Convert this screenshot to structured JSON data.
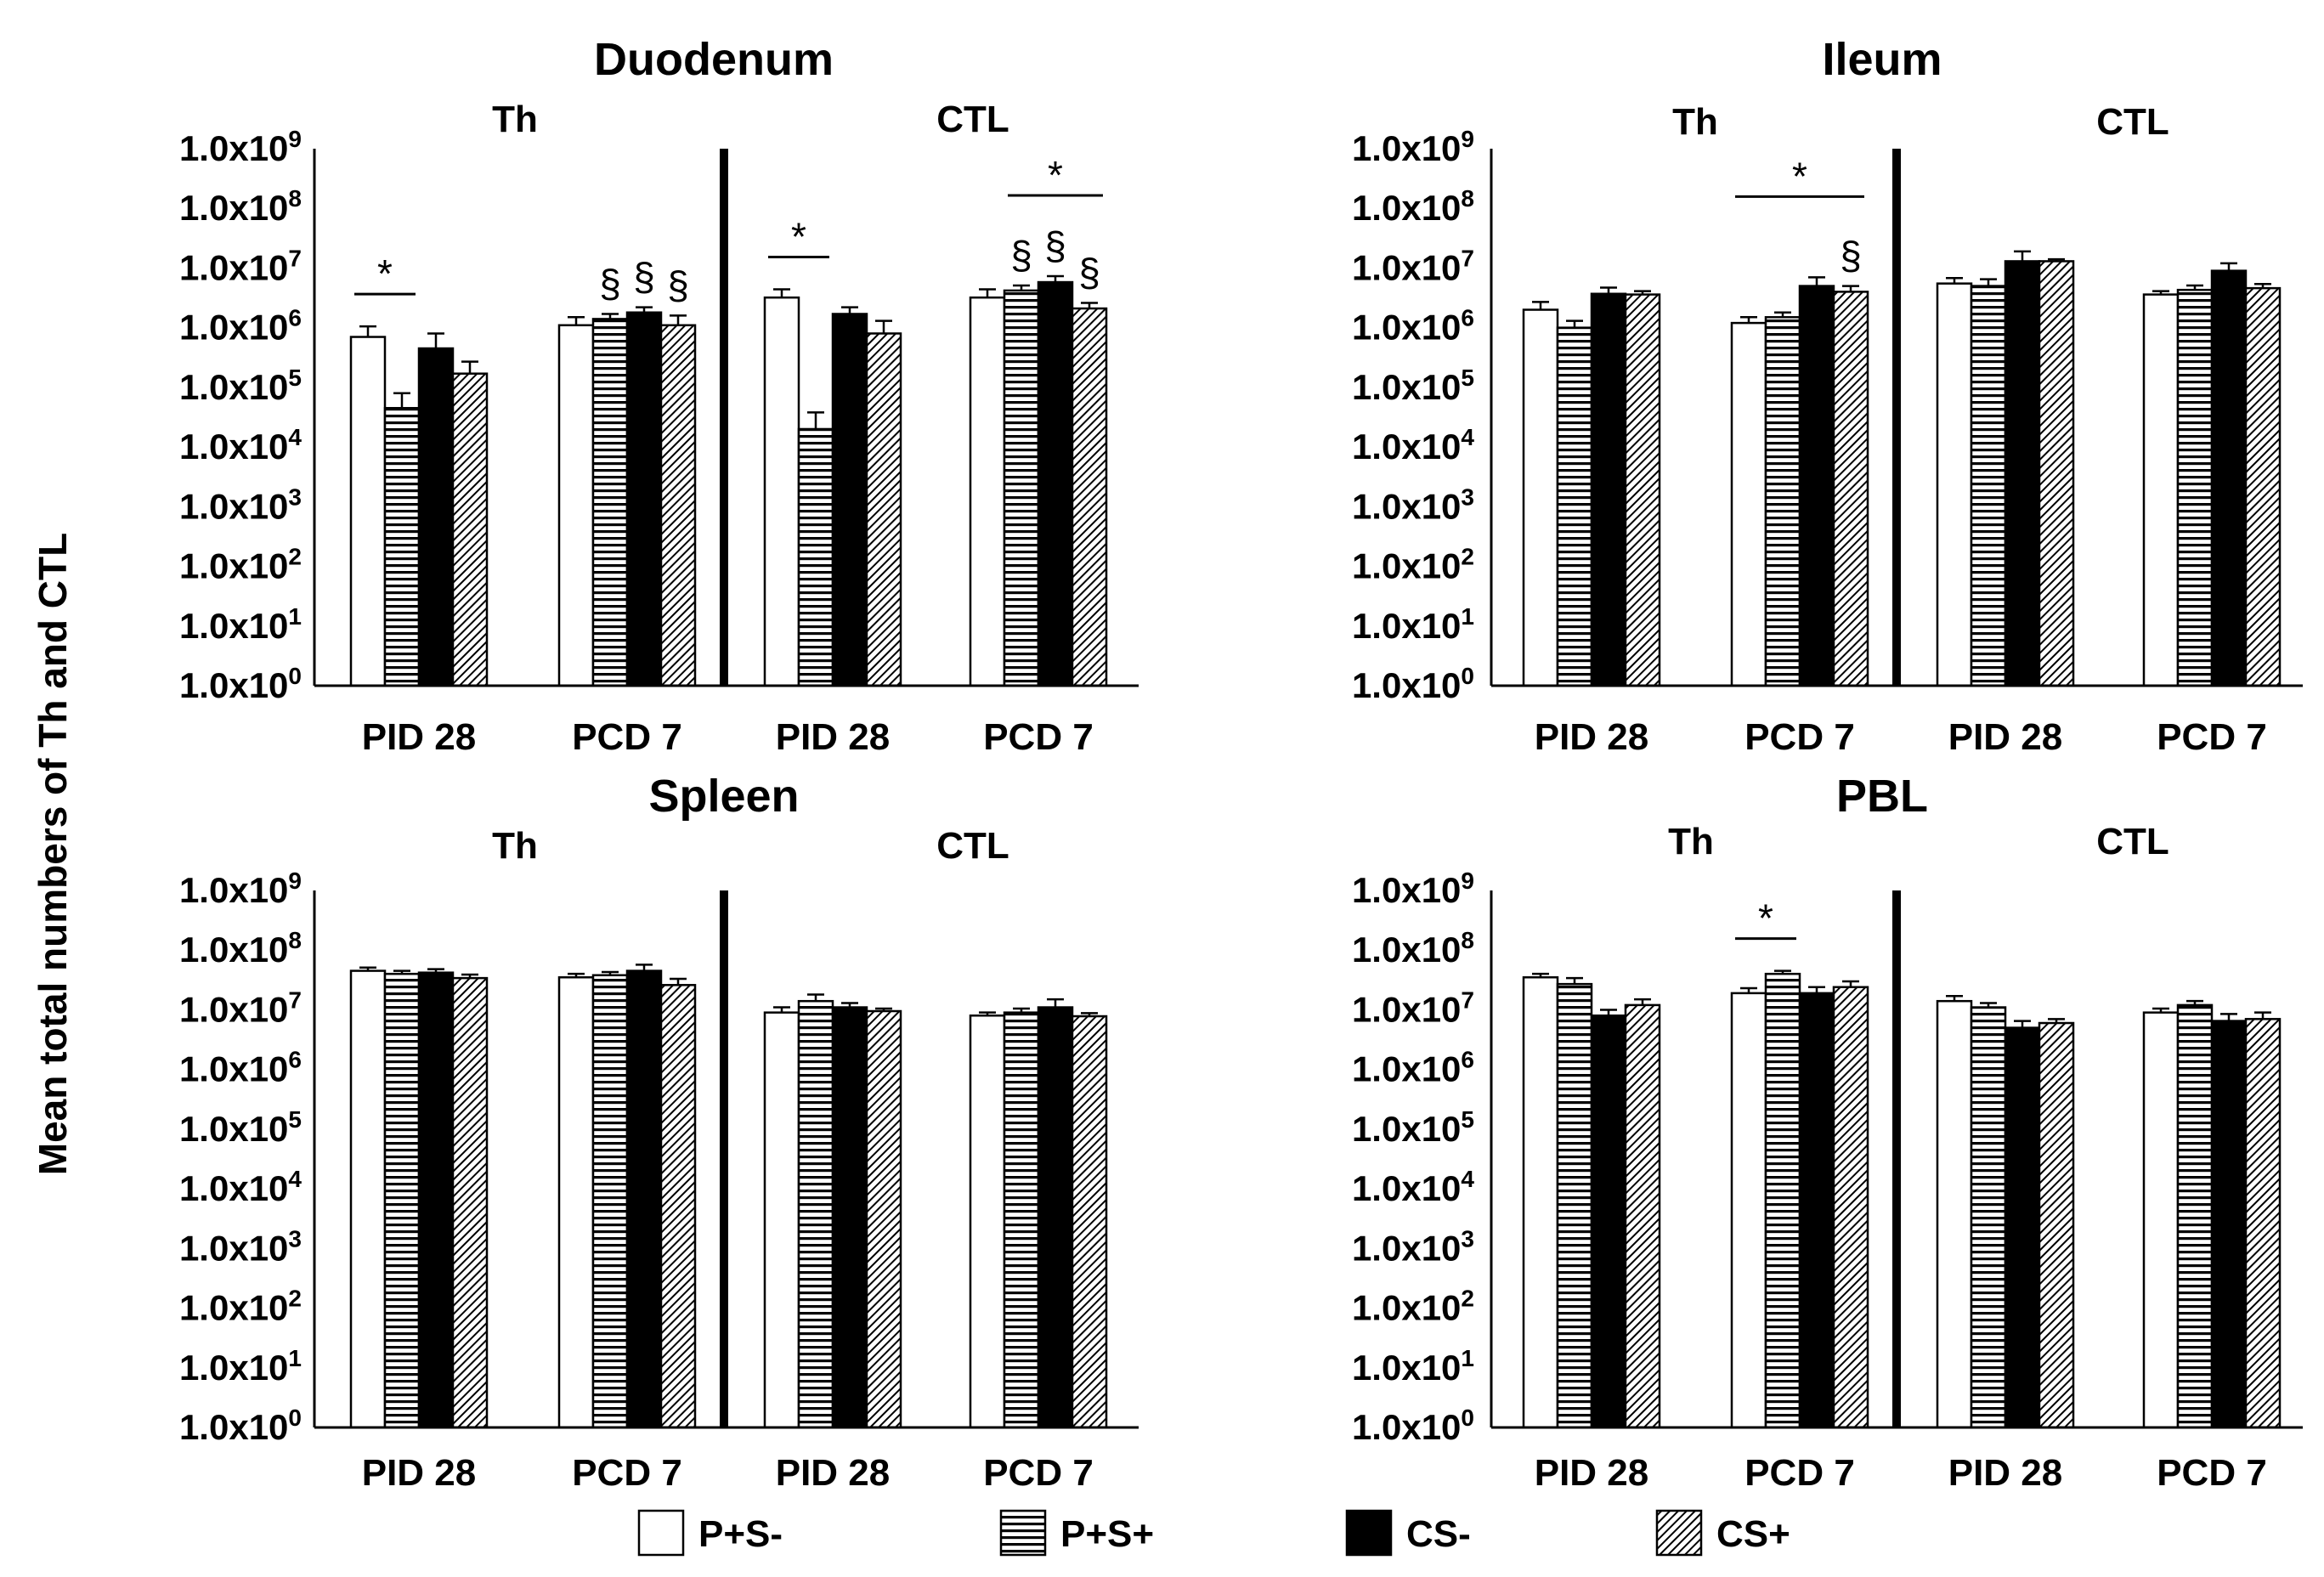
{
  "chart_data": {
    "type": "bar",
    "scale": "log10",
    "ylabel": "Mean total numbers of Th and CTL",
    "ylim": [
      1,
      1000000000
    ],
    "y_ticks": [
      {
        "mantissa": "1.0x10",
        "exp": "9"
      },
      {
        "mantissa": "1.0x10",
        "exp": "8"
      },
      {
        "mantissa": "1.0x10",
        "exp": "7"
      },
      {
        "mantissa": "1.0x10",
        "exp": "6"
      },
      {
        "mantissa": "1.0x10",
        "exp": "5"
      },
      {
        "mantissa": "1.0x10",
        "exp": "4"
      },
      {
        "mantissa": "1.0x10",
        "exp": "3"
      },
      {
        "mantissa": "1.0x10",
        "exp": "2"
      },
      {
        "mantissa": "1.0x10",
        "exp": "1"
      },
      {
        "mantissa": "1.0x10",
        "exp": "0"
      }
    ],
    "legend": [
      {
        "name": "P+S-",
        "fill": "white"
      },
      {
        "name": "P+S+",
        "fill": "horizontal-stripes"
      },
      {
        "name": "CS-",
        "fill": "black"
      },
      {
        "name": "CS+",
        "fill": "diagonal-hatch"
      }
    ],
    "panels": [
      {
        "title": "Duodenum",
        "halves": [
          "Th",
          "CTL"
        ],
        "categories": [
          "PID 28",
          "PCD 7",
          "PID 28",
          "PCD 7"
        ],
        "series": [
          {
            "name": "P+S-",
            "values": [
              700000,
              1100000,
              3200000,
              3200000
            ],
            "errors": [
              350000,
              400000,
              1200000,
              1200000
            ]
          },
          {
            "name": "P+S+",
            "values": [
              45000,
              1400000,
              20000,
              4200000
            ],
            "errors": [
              35000,
              300000,
              18000,
              900000
            ]
          },
          {
            "name": "CS-",
            "values": [
              450000,
              1800000,
              1700000,
              5800000
            ],
            "errors": [
              350000,
              400000,
              500000,
              1500000
            ]
          },
          {
            "name": "CS+",
            "values": [
              170000,
              1100000,
              800000,
              2100000
            ],
            "errors": [
              100000,
              500000,
              500000,
              500000
            ]
          }
        ],
        "annotations": [
          {
            "text": "*",
            "group": 0,
            "from": 0,
            "to": 1
          },
          {
            "text": "§",
            "group": 1,
            "bar": 1
          },
          {
            "text": "§",
            "group": 1,
            "bar": 2
          },
          {
            "text": "§",
            "group": 1,
            "bar": 3
          },
          {
            "text": "*",
            "group": 2,
            "from": 0,
            "to": 1
          },
          {
            "text": "*",
            "group": 3,
            "from": 1,
            "to": 3
          },
          {
            "text": "§",
            "group": 3,
            "bar": 1
          },
          {
            "text": "§",
            "group": 3,
            "bar": 2
          },
          {
            "text": "§",
            "group": 3,
            "bar": 3
          }
        ]
      },
      {
        "title": "Ileum",
        "halves": [
          "Th",
          "CTL"
        ],
        "categories": [
          "PID 28",
          "PCD 7",
          "PID 28",
          "PCD 7"
        ],
        "series": [
          {
            "name": "P+S-",
            "values": [
              2000000,
              1200000,
              5500000,
              3600000
            ],
            "errors": [
              700000,
              300000,
              1300000,
              500000
            ]
          },
          {
            "name": "P+S+",
            "values": [
              1000000,
              1500000,
              5000000,
              4300000
            ],
            "errors": [
              300000,
              300000,
              1500000,
              800000
            ]
          },
          {
            "name": "CS-",
            "values": [
              3700000,
              5000000,
              13000000,
              9000000
            ],
            "errors": [
              1000000,
              2000000,
              6000000,
              3000000
            ]
          },
          {
            "name": "CS+",
            "values": [
              3600000,
              4000000,
              13000000,
              4600000
            ],
            "errors": [
              500000,
              1000000,
              1000000,
              800000
            ]
          }
        ],
        "annotations": [
          {
            "text": "*",
            "group": 1,
            "from": 0,
            "to": 3
          },
          {
            "text": "§",
            "group": 1,
            "bar": 3
          }
        ]
      },
      {
        "title": "Spleen",
        "halves": [
          "Th",
          "CTL"
        ],
        "categories": [
          "PID 28",
          "PCD 7",
          "PID 28",
          "PCD 7"
        ],
        "series": [
          {
            "name": "P+S-",
            "values": [
              45000000,
              35000000,
              9000000,
              8000000
            ],
            "errors": [
              6000000,
              5000000,
              2000000,
              1000000
            ]
          },
          {
            "name": "P+S+",
            "values": [
              40000000,
              38000000,
              14000000,
              9000000
            ],
            "errors": [
              5000000,
              5000000,
              4000000,
              1500000
            ]
          },
          {
            "name": "CS-",
            "values": [
              42000000,
              45000000,
              11000000,
              11000000
            ],
            "errors": [
              6000000,
              12000000,
              2000000,
              4000000
            ]
          },
          {
            "name": "CS+",
            "values": [
              34000000,
              26000000,
              9500000,
              7800000
            ],
            "errors": [
              5000000,
              7000000,
              1000000,
              1000000
            ]
          }
        ],
        "annotations": []
      },
      {
        "title": "PBL",
        "halves": [
          "Th",
          "CTL"
        ],
        "categories": [
          "PID 28",
          "PCD 7",
          "PID 28",
          "PCD 7"
        ],
        "series": [
          {
            "name": "P+S-",
            "values": [
              35000000,
              19000000,
              14000000,
              9000000
            ],
            "errors": [
              5000000,
              4000000,
              3000000,
              1500000
            ]
          },
          {
            "name": "P+S+",
            "values": [
              27000000,
              40000000,
              11000000,
              12000000
            ],
            "errors": [
              7000000,
              5000000,
              2000000,
              2000000
            ]
          },
          {
            "name": "CS-",
            "values": [
              8000000,
              19000000,
              5000000,
              6500000
            ],
            "errors": [
              2000000,
              5000000,
              1500000,
              2000000
            ]
          },
          {
            "name": "CS+",
            "values": [
              12000000,
              24000000,
              6000000,
              7000000
            ],
            "errors": [
              3000000,
              6000000,
              1000000,
              2000000
            ]
          }
        ],
        "annotations": [
          {
            "text": "*",
            "group": 1,
            "from": 0,
            "to": 1
          }
        ]
      }
    ]
  }
}
